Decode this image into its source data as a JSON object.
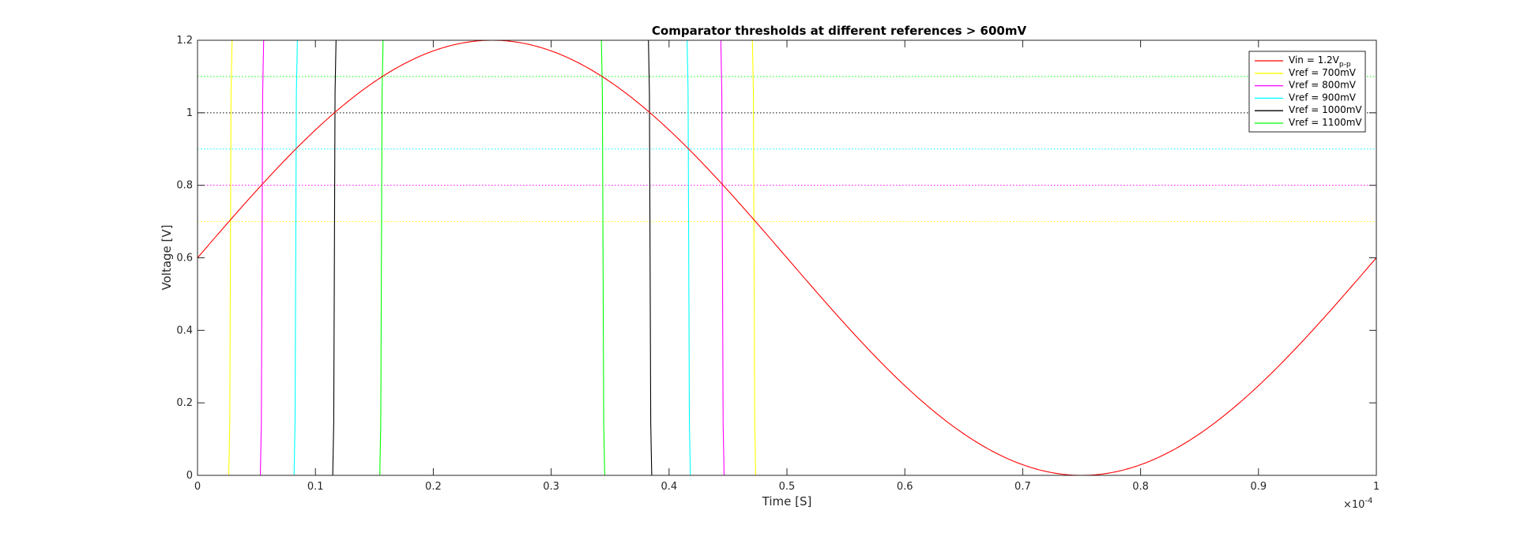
{
  "chart_data": {
    "type": "line",
    "title": "Comparator thresholds at different references > 600mV",
    "xlabel": "Time [S]",
    "ylabel": "Voltage [V]",
    "xlim": [
      0,
      1
    ],
    "ylim": [
      0,
      1.2
    ],
    "x_exponent_label": "×10",
    "x_exponent_power": "-4",
    "x_ticks": [
      0,
      0.1,
      0.2,
      0.3,
      0.4,
      0.5,
      0.6,
      0.7,
      0.8,
      0.9,
      1
    ],
    "x_tick_labels": [
      "0",
      "0.1",
      "0.2",
      "0.3",
      "0.4",
      "0.5",
      "0.6",
      "0.7",
      "0.8",
      "0.9",
      "1"
    ],
    "y_ticks": [
      0,
      0.2,
      0.4,
      0.6,
      0.8,
      1,
      1.2
    ],
    "y_tick_labels": [
      "0",
      "0.2",
      "0.4",
      "0.6",
      "0.8",
      "1",
      "1.2"
    ],
    "input": {
      "name": "Vin = 1.2V",
      "subscript": "p-p",
      "offset": 0.6,
      "amplitude": 0.6,
      "period": 1,
      "color": "#ff0000"
    },
    "series": [
      {
        "name": "Vref = 700mV",
        "vref": 0.7,
        "color": "#ffff00",
        "high": 1.2,
        "rise": 0.0279,
        "fall": 0.4721
      },
      {
        "name": "Vref = 800mV",
        "vref": 0.8,
        "color": "#ff00ff",
        "high": 1.2,
        "rise": 0.0547,
        "fall": 0.4453
      },
      {
        "name": "Vref = 900mV",
        "vref": 0.9,
        "color": "#00ffff",
        "high": 1.2,
        "rise": 0.0833,
        "fall": 0.4167
      },
      {
        "name": "Vref = 1000mV",
        "vref": 1.0,
        "color": "#000000",
        "high": 1.2,
        "rise": 0.1161,
        "fall": 0.3839
      },
      {
        "name": "Vref = 1100mV",
        "vref": 1.1,
        "color": "#00ff00",
        "high": 1.2,
        "rise": 0.156,
        "fall": 0.344
      }
    ],
    "legend_location": "top-right",
    "grid": false
  }
}
